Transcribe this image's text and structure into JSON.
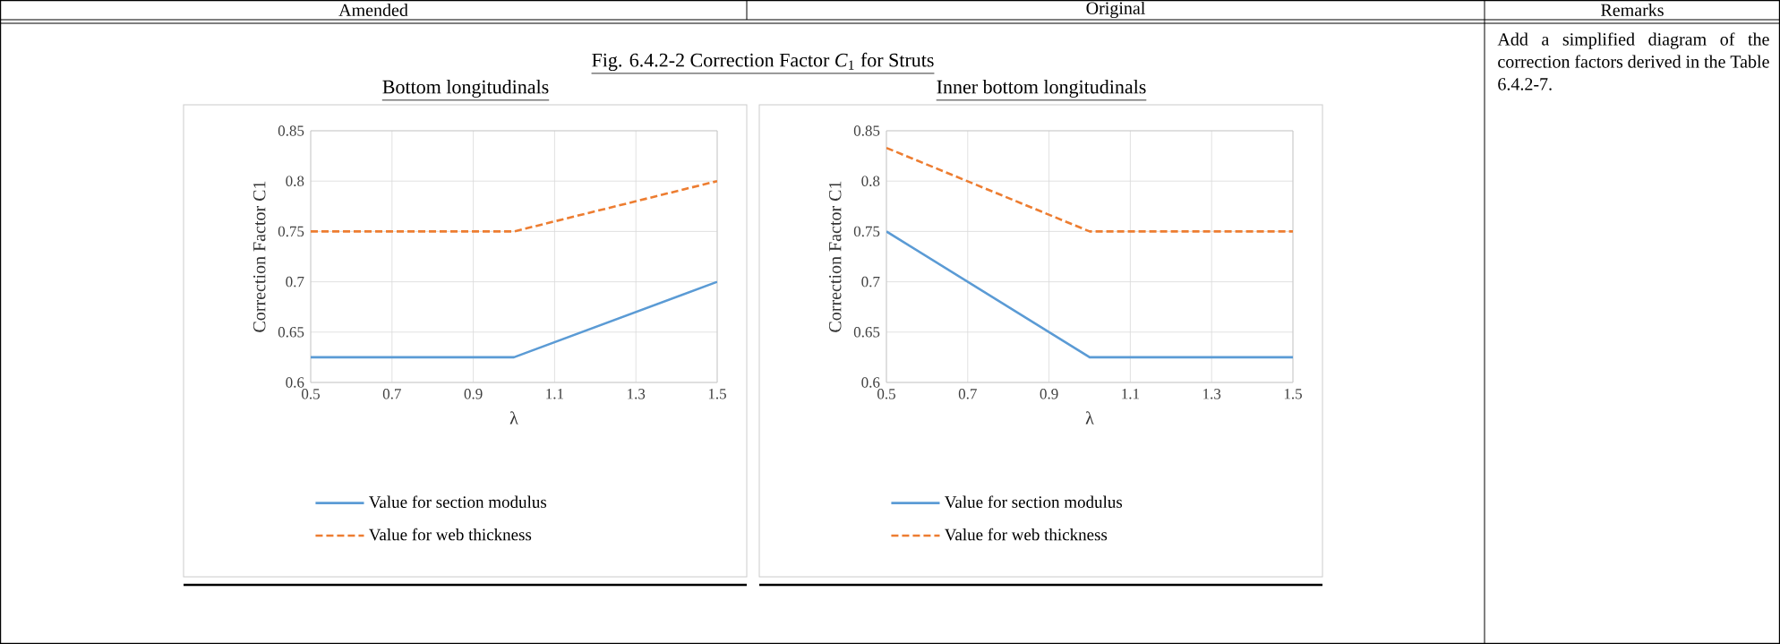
{
  "chart_data": [
    {
      "type": "line",
      "title": "Bottom longitudinals",
      "xlabel": "λ",
      "ylabel": "Correction Factor C1",
      "xlim": [
        0.5,
        1.5
      ],
      "xticks": [
        0.5,
        0.7,
        0.9,
        1.1,
        1.3,
        1.5
      ],
      "ylim": [
        0.6,
        0.85
      ],
      "yticks": [
        0.6,
        0.65,
        0.7,
        0.75,
        0.8,
        0.85
      ],
      "grid": true,
      "legend": "bottom",
      "annotations": [
        "Amended",
        "Original",
        "Remarks",
        "Fig. 6.4.2-2    Correction Factor *C*$_{1}$  for Struts",
        "Add a simplified diagram of the correction factors derived in the Table 6.4.2-7."
      ],
      "series": [
        {
          "name": "Value for section modulus",
          "color": "#5b9bd5",
          "line_style": "solid",
          "x": [
            0.5,
            1.0,
            1.5
          ],
          "values": [
            0.625,
            0.625,
            0.7
          ]
        },
        {
          "name": "Value for web thickness",
          "color": "#ed7d31",
          "line_style": "dashed",
          "x": [
            0.5,
            1.0,
            1.5
          ],
          "values": [
            0.75,
            0.75,
            0.8
          ]
        }
      ]
    },
    {
      "type": "line",
      "title": "Inner bottom longitudinals",
      "xlabel": "λ",
      "ylabel": "Correction Factor C1",
      "xlim": [
        0.5,
        1.5
      ],
      "xticks": [
        0.5,
        0.7,
        0.9,
        1.1,
        1.3,
        1.5
      ],
      "ylim": [
        0.6,
        0.85
      ],
      "yticks": [
        0.6,
        0.65,
        0.7,
        0.75,
        0.8,
        0.85
      ],
      "grid": true,
      "legend": "bottom",
      "series": [
        {
          "name": "Value for section modulus",
          "color": "#5b9bd5",
          "line_style": "solid",
          "x": [
            0.5,
            1.0,
            1.5
          ],
          "values": [
            0.75,
            0.625,
            0.625
          ]
        },
        {
          "name": "Value for web thickness",
          "color": "#ed7d31",
          "line_style": "dashed",
          "x": [
            0.5,
            1.0,
            1.5
          ],
          "values": [
            0.833,
            0.75,
            0.75
          ]
        }
      ]
    }
  ]
}
